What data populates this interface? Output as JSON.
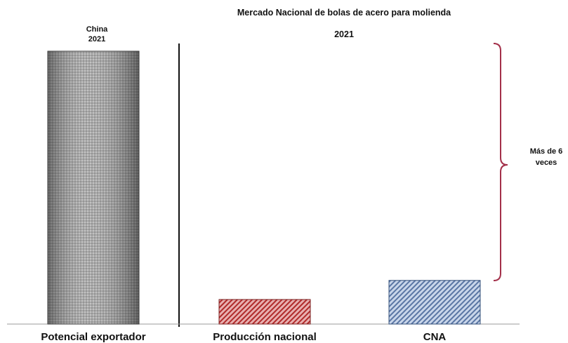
{
  "chart_data": {
    "type": "bar",
    "title": "Mercado Nacional de bolas de acero para molienda",
    "subtitle": "2021",
    "categories": [
      "Potencial exportador",
      "Producción nacional",
      "CNA"
    ],
    "values": [
      100,
      9,
      16
    ],
    "ylim": [
      0,
      100
    ],
    "bar_label_top": [
      "China",
      "2021"
    ],
    "annotation": [
      "Más de 6",
      "veces"
    ],
    "colors": [
      "#8a8a8a",
      "#b83a3a",
      "#6a86b0"
    ],
    "grid": false,
    "legend": "none"
  }
}
